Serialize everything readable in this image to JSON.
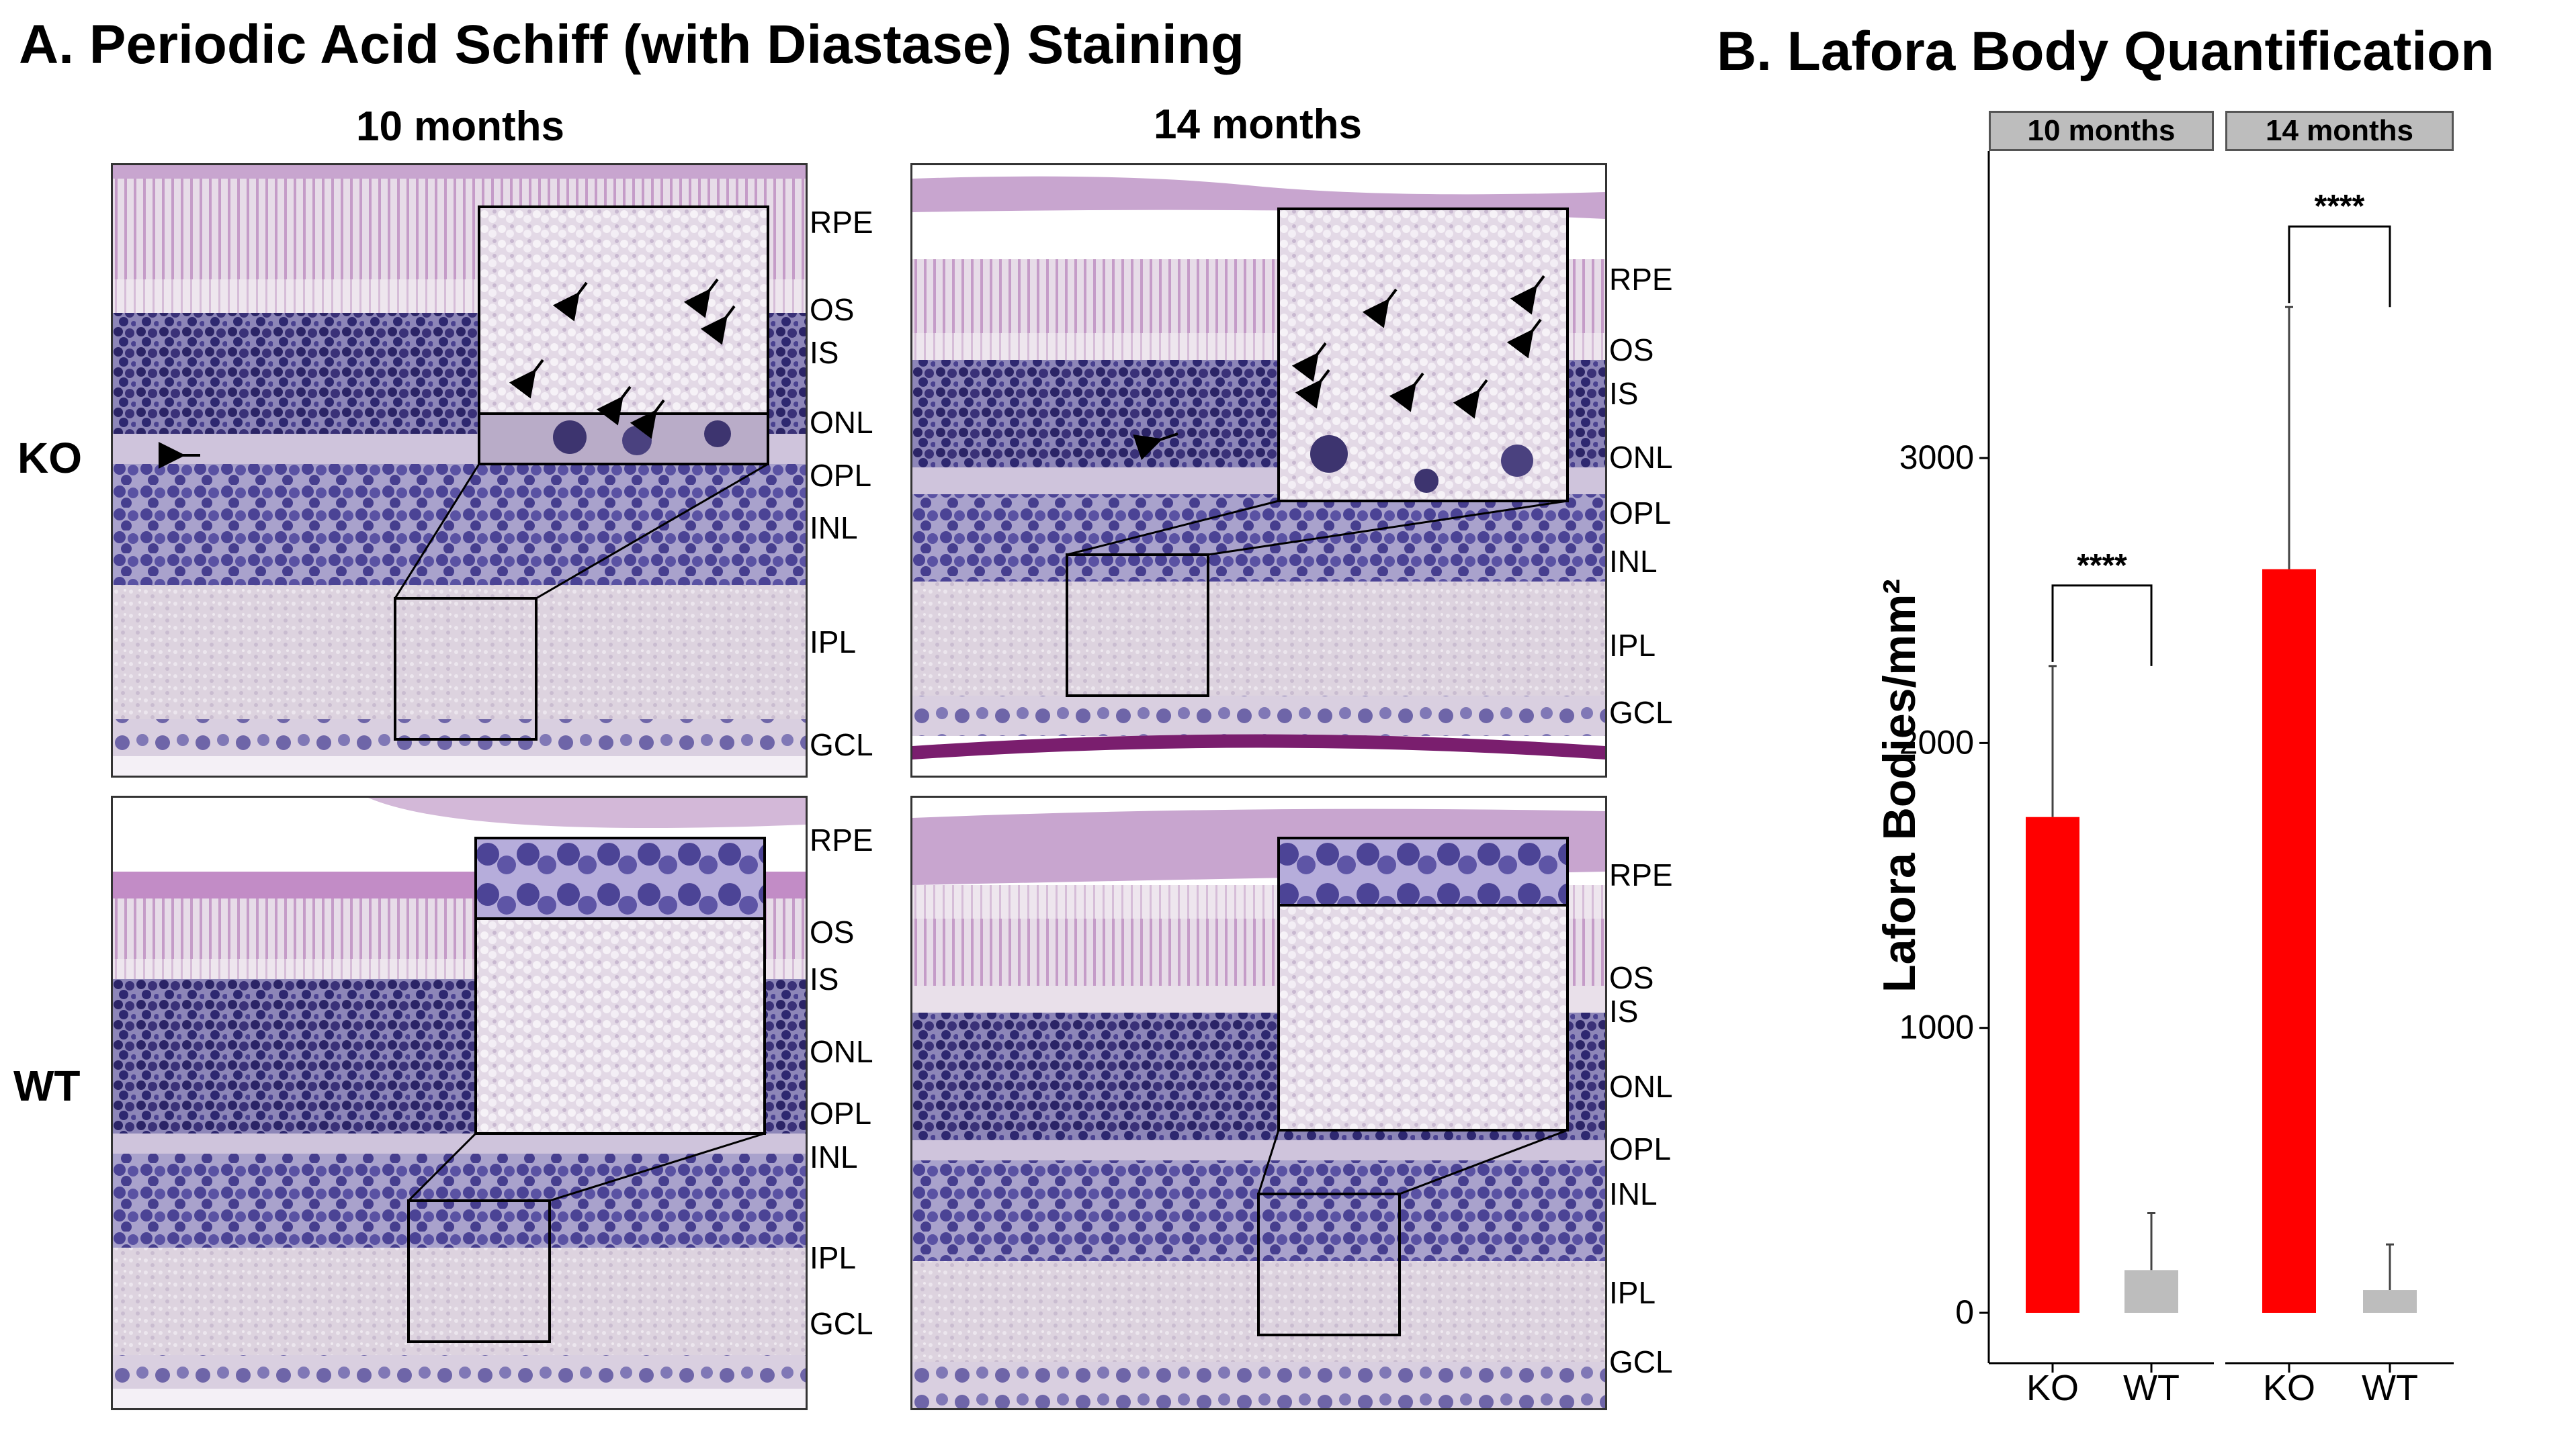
{
  "panel_a": {
    "title": "A. Periodic Acid Schiff (with Diastase) Staining",
    "col_titles": [
      "10 months",
      "14 months"
    ],
    "row_labels": [
      "KO",
      "WT"
    ],
    "layers": {
      "ko_10": [
        "RPE",
        "OS",
        "IS",
        "ONL",
        "OPL",
        "INL",
        "IPL",
        "GCL"
      ],
      "ko_14": [
        "RPE",
        "OS",
        "IS",
        "ONL",
        "OPL",
        "INL",
        "IPL",
        "GCL"
      ],
      "wt_10": [
        "RPE",
        "OS",
        "IS",
        "ONL",
        "OPL",
        "INL",
        "IPL",
        "GCL"
      ],
      "wt_14": [
        "RPE",
        "OS",
        "IS",
        "ONL",
        "OPL",
        "INL",
        "IPL",
        "GCL"
      ]
    }
  },
  "panel_b": {
    "title": "B. Lafora Body Quantification",
    "ylabel": "Lafora Bodies/mm²",
    "facets": [
      "10 months",
      "14 months"
    ],
    "significance": [
      "****",
      "****"
    ]
  },
  "chart_data": {
    "type": "bar",
    "title": "B. Lafora Body Quantification",
    "ylabel": "Lafora Bodies/mm²",
    "xlabel": "",
    "facets": [
      "10 months",
      "14 months"
    ],
    "categories": [
      "KO",
      "WT"
    ],
    "ylim": [
      0,
      3800
    ],
    "yticks": [
      0,
      1000,
      2000,
      3000
    ],
    "grid": false,
    "series": [
      {
        "facet": "10 months",
        "values": [
          1740,
          150
        ],
        "errors": [
          530,
          200
        ],
        "colors": [
          "#ff0000",
          "#bdbdbd"
        ]
      },
      {
        "facet": "14 months",
        "values": [
          2610,
          80
        ],
        "errors": [
          920,
          160
        ],
        "colors": [
          "#ff0000",
          "#bdbdbd"
        ]
      }
    ],
    "annotations": [
      {
        "facet": "10 months",
        "text": "****"
      },
      {
        "facet": "14 months",
        "text": "****"
      }
    ]
  }
}
